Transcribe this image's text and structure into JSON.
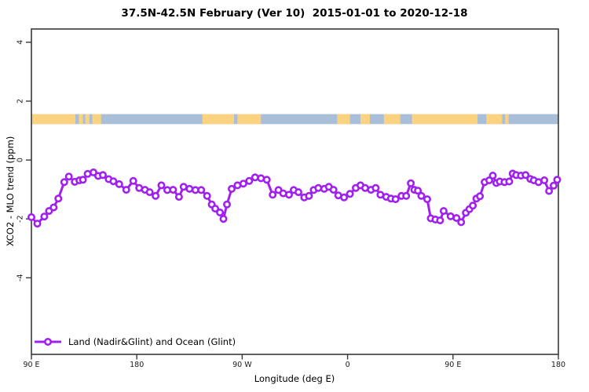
{
  "chart_data": {
    "type": "line",
    "title": "37.5N-42.5N February (Ver 10)  2015-01-01 to 2020-12-18",
    "xlabel": "Longitude (deg E)",
    "ylabel": "XCO2 - MLO trend (ppm)",
    "xlim": [
      90,
      540
    ],
    "ylim": [
      -6.6,
      4.45
    ],
    "grid": false,
    "x_ticks": {
      "values": [
        90,
        180,
        270,
        360,
        450,
        540
      ],
      "labels": [
        "90 E",
        "180",
        "90 W",
        "0",
        "90 E",
        "180"
      ]
    },
    "y_ticks": {
      "values": [
        4,
        2,
        0,
        -2,
        -4
      ],
      "labels": [
        "4",
        "2",
        "0",
        "-2",
        "-4"
      ]
    },
    "legend": {
      "label": "Land (Nadir&Glint) and Ocean (Glint)",
      "position": "bottom-left"
    },
    "colors": {
      "series": "#A020F0",
      "axis": "#383838",
      "text": "#1a1a1a",
      "marker_fill": "#ffffff"
    },
    "map_strip": {
      "y_range": [
        1.22,
        1.56
      ],
      "ocean_color": "#A9BFD9",
      "land_color": "#FBD380",
      "land_segments_lon": [
        [
          90,
          127.5
        ],
        [
          130.5,
          134
        ],
        [
          136,
          139.5
        ],
        [
          142,
          149.5
        ],
        [
          236,
          263
        ],
        [
          266,
          286
        ],
        [
          351,
          362
        ],
        [
          371,
          379
        ],
        [
          391,
          405
        ],
        [
          415,
          471
        ],
        [
          478.5,
          492
        ],
        [
          494.5,
          497.5
        ]
      ]
    },
    "series": [
      {
        "name": "Land (Nadir&Glint) and Ocean (Glint)",
        "color": "#A020F0",
        "marker": "open-circle",
        "x": [
          90,
          95,
          101,
          105,
          109,
          113,
          118,
          122,
          127,
          131,
          134,
          138,
          143,
          147,
          151,
          156,
          160,
          165,
          171,
          177,
          182,
          187,
          191,
          196,
          201,
          206,
          211,
          216,
          220,
          225,
          230,
          235,
          240,
          244,
          247,
          251,
          254,
          257,
          261,
          266,
          271,
          276,
          281,
          286,
          291,
          296,
          301,
          305,
          310,
          314,
          318,
          323,
          327,
          331,
          335,
          340,
          344,
          348,
          352,
          357,
          362,
          367,
          371,
          375,
          380,
          384,
          388,
          393,
          397,
          401,
          406,
          410,
          414,
          417,
          420,
          423,
          428,
          431,
          435,
          439,
          442,
          448,
          453,
          457,
          461,
          464,
          467,
          470,
          473,
          477,
          481,
          484,
          487,
          490,
          494,
          498,
          501,
          504,
          508,
          512,
          516,
          519,
          523,
          528,
          532,
          536,
          539
        ],
        "y": [
          -1.94,
          -2.16,
          -1.92,
          -1.73,
          -1.61,
          -1.31,
          -0.75,
          -0.56,
          -0.74,
          -0.69,
          -0.67,
          -0.47,
          -0.42,
          -0.54,
          -0.51,
          -0.65,
          -0.72,
          -0.82,
          -1.01,
          -0.71,
          -0.95,
          -1.01,
          -1.09,
          -1.22,
          -0.86,
          -1.02,
          -1.01,
          -1.25,
          -0.91,
          -0.98,
          -1.02,
          -1.02,
          -1.22,
          -1.51,
          -1.65,
          -1.78,
          -2.0,
          -1.51,
          -0.98,
          -0.86,
          -0.8,
          -0.71,
          -0.59,
          -0.62,
          -0.67,
          -1.18,
          -1.02,
          -1.13,
          -1.18,
          -1.02,
          -1.09,
          -1.27,
          -1.22,
          -1.02,
          -0.95,
          -0.98,
          -0.91,
          -1.01,
          -1.2,
          -1.27,
          -1.15,
          -0.95,
          -0.86,
          -0.95,
          -1.01,
          -0.95,
          -1.18,
          -1.25,
          -1.31,
          -1.33,
          -1.22,
          -1.22,
          -0.79,
          -1.01,
          -1.04,
          -1.22,
          -1.33,
          -1.98,
          -2.02,
          -2.05,
          -1.73,
          -1.91,
          -1.97,
          -2.11,
          -1.79,
          -1.67,
          -1.55,
          -1.31,
          -1.23,
          -0.75,
          -0.69,
          -0.53,
          -0.78,
          -0.73,
          -0.75,
          -0.73,
          -0.46,
          -0.51,
          -0.53,
          -0.51,
          -0.64,
          -0.69,
          -0.75,
          -0.69,
          -1.05,
          -0.87,
          -0.67
        ]
      }
    ]
  }
}
